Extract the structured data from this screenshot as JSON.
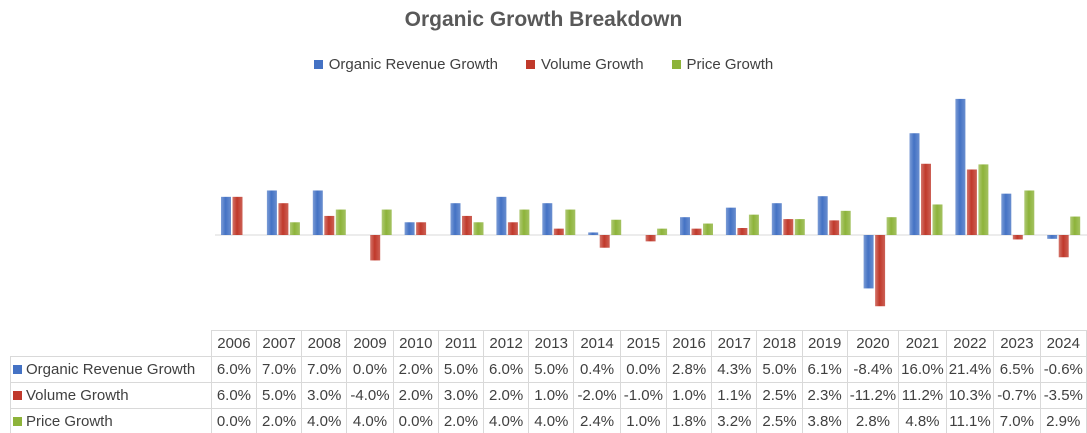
{
  "chart_data": {
    "type": "bar",
    "title": "Organic Growth Breakdown",
    "legend_position": "top",
    "categories": [
      "2006",
      "2007",
      "2008",
      "2009",
      "2010",
      "2011",
      "2012",
      "2013",
      "2014",
      "2015",
      "2016",
      "2017",
      "2018",
      "2019",
      "2020",
      "2021",
      "2022",
      "2023",
      "2024"
    ],
    "series": [
      {
        "name": "Organic Revenue Growth",
        "color": "#4472C4",
        "values": [
          6.0,
          7.0,
          7.0,
          0.0,
          2.0,
          5.0,
          6.0,
          5.0,
          0.4,
          0.0,
          2.8,
          4.3,
          5.0,
          6.1,
          -8.4,
          16.0,
          21.4,
          6.5,
          -0.6
        ],
        "labels": [
          "6.0%",
          "7.0%",
          "7.0%",
          "0.0%",
          "2.0%",
          "5.0%",
          "6.0%",
          "5.0%",
          "0.4%",
          "0.0%",
          "2.8%",
          "4.3%",
          "5.0%",
          "6.1%",
          "-8.4%",
          "16.0%",
          "21.4%",
          "6.5%",
          "-0.6%"
        ]
      },
      {
        "name": "Volume Growth",
        "color": "#C0392B",
        "values": [
          6.0,
          5.0,
          3.0,
          -4.0,
          2.0,
          3.0,
          2.0,
          1.0,
          -2.0,
          -1.0,
          1.0,
          1.1,
          2.5,
          2.3,
          -11.2,
          11.2,
          10.3,
          -0.7,
          -3.5
        ],
        "labels": [
          "6.0%",
          "5.0%",
          "3.0%",
          "-4.0%",
          "2.0%",
          "3.0%",
          "2.0%",
          "1.0%",
          "-2.0%",
          "-1.0%",
          "1.0%",
          "1.1%",
          "2.5%",
          "2.3%",
          "-11.2%",
          "11.2%",
          "10.3%",
          "-0.7%",
          "-3.5%"
        ]
      },
      {
        "name": "Price Growth",
        "color": "#8DB33A",
        "values": [
          0.0,
          2.0,
          4.0,
          4.0,
          0.0,
          2.0,
          4.0,
          4.0,
          2.4,
          1.0,
          1.8,
          3.2,
          2.5,
          3.8,
          2.8,
          4.8,
          11.1,
          7.0,
          2.9
        ],
        "labels": [
          "0.0%",
          "2.0%",
          "4.0%",
          "4.0%",
          "0.0%",
          "2.0%",
          "4.0%",
          "4.0%",
          "2.4%",
          "1.0%",
          "1.8%",
          "3.2%",
          "2.5%",
          "3.8%",
          "2.8%",
          "4.8%",
          "11.1%",
          "7.0%",
          "2.9%"
        ]
      }
    ],
    "xlabel": "",
    "ylabel": "",
    "ylim": [
      -15,
      23
    ],
    "grid": false
  }
}
